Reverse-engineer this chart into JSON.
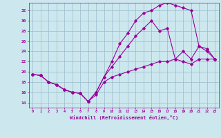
{
  "xlabel": "Windchill (Refroidissement éolien,°C)",
  "background_color": "#cce8ee",
  "line_color": "#990099",
  "xlim": [
    -0.5,
    23.5
  ],
  "ylim": [
    13.0,
    33.5
  ],
  "xticks": [
    0,
    1,
    2,
    3,
    4,
    5,
    6,
    7,
    8,
    9,
    10,
    11,
    12,
    13,
    14,
    15,
    16,
    17,
    18,
    19,
    20,
    21,
    22,
    23
  ],
  "yticks": [
    14,
    16,
    18,
    20,
    22,
    24,
    26,
    28,
    30,
    32
  ],
  "grid_color": "#99bbcc",
  "series": [
    {
      "x": [
        0,
        1,
        2,
        3,
        4,
        5,
        6,
        7,
        8,
        9,
        10,
        11,
        12,
        13,
        14,
        15,
        16,
        17,
        18,
        19,
        20,
        21,
        22,
        23
      ],
      "y": [
        19.5,
        19.3,
        18.0,
        17.5,
        16.5,
        16.0,
        15.8,
        14.2,
        15.5,
        18.0,
        19.0,
        19.5,
        20.0,
        20.5,
        21.0,
        21.5,
        22.0,
        22.0,
        22.5,
        22.0,
        21.5,
        22.5,
        22.5,
        22.5
      ]
    },
    {
      "x": [
        0,
        1,
        2,
        3,
        4,
        5,
        6,
        7,
        8,
        9,
        10,
        11,
        12,
        13,
        14,
        15,
        16,
        17,
        18,
        19,
        20,
        21,
        22,
        23
      ],
      "y": [
        19.5,
        19.3,
        18.0,
        17.5,
        16.5,
        16.0,
        15.8,
        14.2,
        16.0,
        19.0,
        21.0,
        23.0,
        25.0,
        27.0,
        28.5,
        30.0,
        28.0,
        28.5,
        22.5,
        24.0,
        22.5,
        25.0,
        24.5,
        22.5
      ]
    },
    {
      "x": [
        0,
        1,
        2,
        3,
        4,
        5,
        6,
        7,
        8,
        9,
        10,
        11,
        12,
        13,
        14,
        15,
        16,
        17,
        18,
        19,
        20,
        21,
        22,
        23
      ],
      "y": [
        19.5,
        19.3,
        18.0,
        17.5,
        16.5,
        16.0,
        15.8,
        14.2,
        16.0,
        19.0,
        22.0,
        25.5,
        27.5,
        30.0,
        31.5,
        32.0,
        33.0,
        33.5,
        33.0,
        32.5,
        32.0,
        25.0,
        24.0,
        22.5
      ]
    }
  ]
}
